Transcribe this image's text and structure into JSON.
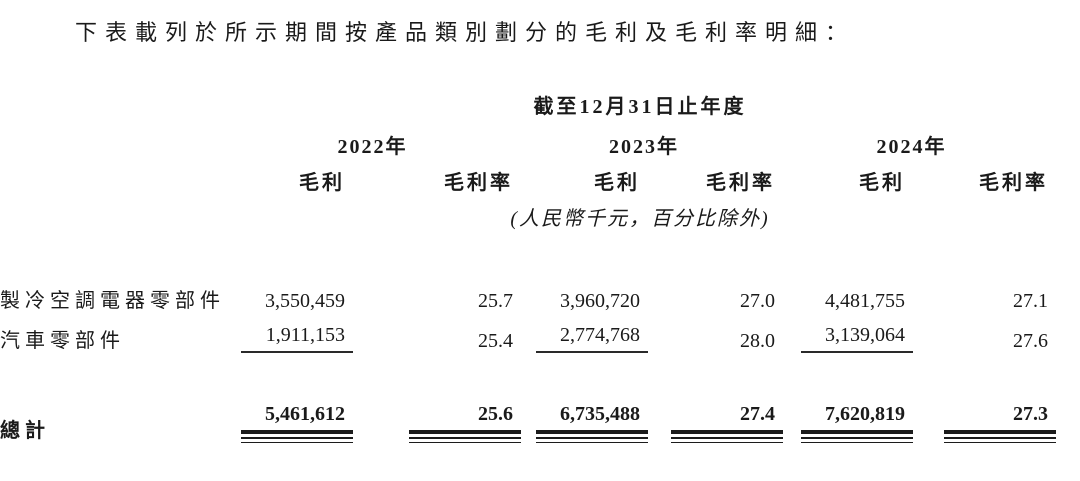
{
  "page": {
    "title": "下表載列於所示期間按產品類別劃分的毛利及毛利率明細："
  },
  "table": {
    "period_header": "截至12月31日止年度",
    "unit_note": "(人民幣千元，百分比除外)",
    "year_groups": [
      {
        "year": "2022年",
        "gp_label": "毛利",
        "gpm_label": "毛利率"
      },
      {
        "year": "2023年",
        "gp_label": "毛利",
        "gpm_label": "毛利率"
      },
      {
        "year": "2024年",
        "gp_label": "毛利",
        "gpm_label": "毛利率"
      }
    ],
    "rows": [
      {
        "label": "製冷空調電器零部件",
        "values": [
          "3,550,459",
          "25.7",
          "3,960,720",
          "27.0",
          "4,481,755",
          "27.1"
        ]
      },
      {
        "label": "汽車零部件",
        "values": [
          "1,911,153",
          "25.4",
          "2,774,768",
          "28.0",
          "3,139,064",
          "27.6"
        ]
      }
    ],
    "total": {
      "label": "總計",
      "values": [
        "5,461,612",
        "25.6",
        "6,735,488",
        "27.4",
        "7,620,819",
        "27.3"
      ]
    }
  },
  "colors": {
    "text": "#1a1a1a",
    "rule": "#1c1c1c",
    "background": "#ffffff"
  }
}
